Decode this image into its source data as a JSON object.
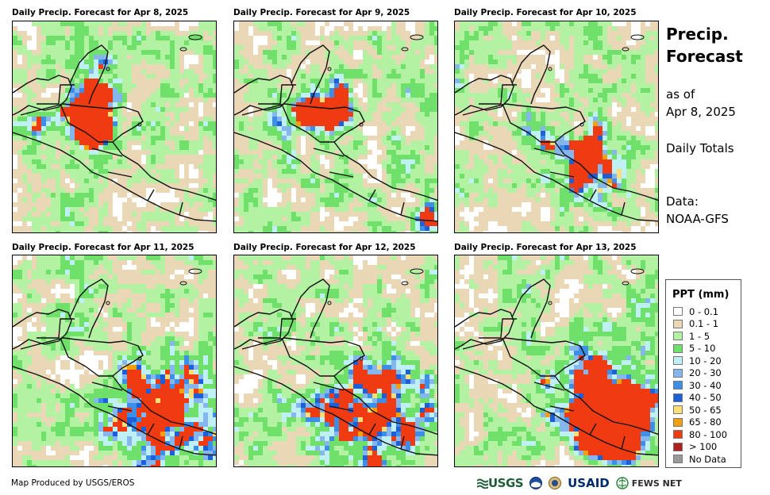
{
  "panels": [
    {
      "title": "Daily Precip. Forecast for Apr 8, 2025"
    },
    {
      "title": "Daily Precip. Forecast for Apr 9, 2025"
    },
    {
      "title": "Daily Precip. Forecast for Apr 10, 2025"
    },
    {
      "title": "Daily Precip. Forecast for Apr 11, 2025"
    },
    {
      "title": "Daily Precip. Forecast for Apr 12, 2025"
    },
    {
      "title": "Daily Precip. Forecast for Apr 13, 2025"
    }
  ],
  "sidebar": {
    "title_line1": "Precip.",
    "title_line2": "Forecast",
    "asof_line1": "as of",
    "asof_line2": "Apr 8, 2025",
    "totals": "Daily Totals",
    "data_label": "Data:",
    "data_source": "NOAA-GFS"
  },
  "legend": {
    "title": "PPT (mm)",
    "items": [
      {
        "label": "0 - 0.1",
        "color": "#ffffff"
      },
      {
        "label": "0.1 - 1",
        "color": "#ead7b5"
      },
      {
        "label": "1 - 5",
        "color": "#b3f2a3"
      },
      {
        "label": "5 - 10",
        "color": "#6fe06a"
      },
      {
        "label": "10 - 20",
        "color": "#bff0f5"
      },
      {
        "label": "20 - 30",
        "color": "#86b6ee"
      },
      {
        "label": "30 - 40",
        "color": "#3d8ee8"
      },
      {
        "label": "40 - 50",
        "color": "#1c5fd9"
      },
      {
        "label": "50 - 65",
        "color": "#fcde78"
      },
      {
        "label": "65 - 80",
        "color": "#f2a00d"
      },
      {
        "label": "80 - 100",
        "color": "#f03a12"
      },
      {
        "label": "> 100",
        "color": "#b2201e"
      },
      {
        "label": "No Data",
        "color": "#9a9a9a"
      }
    ]
  },
  "footer": {
    "credit": "Map Produced by USGS/EROS"
  },
  "logos": {
    "usgs": "USGS",
    "usaid": "USAID",
    "fews": "FEWS NET"
  }
}
